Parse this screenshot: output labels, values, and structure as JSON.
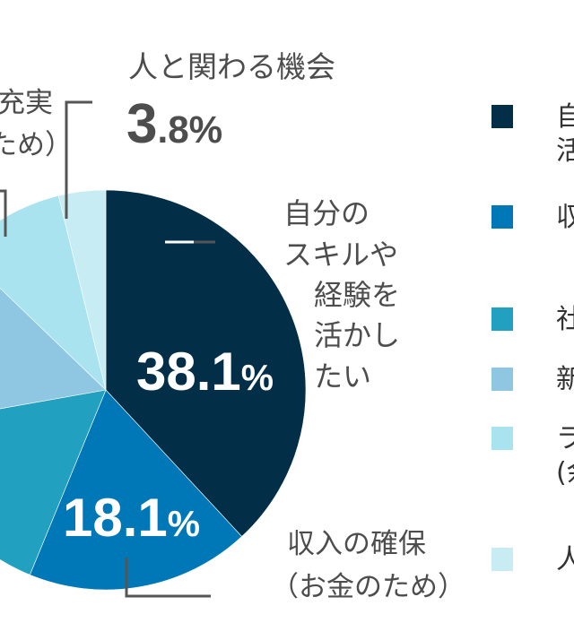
{
  "chart_data": {
    "type": "pie",
    "slices": [
      {
        "label": "自分のスキルや経験を活かしたい",
        "value": 38.1,
        "value_label": "38.1%",
        "color": "#022e48"
      },
      {
        "label": "収入の確保（お金のため）",
        "value": 18.1,
        "value_label": "18.1%",
        "color": "#0077b6"
      },
      {
        "label": "",
        "value": 16.0,
        "color": "#22a0c0"
      },
      {
        "label": "",
        "value": 15.0,
        "color": "#8fc7e3"
      },
      {
        "label": "…充実 …ため）",
        "value": 9.0,
        "color": "#a9e3f0"
      },
      {
        "label": "人と関わる機会",
        "value": 3.8,
        "value_label": "3.8%",
        "color": "#c8ecf4"
      }
    ],
    "start": "12 o'clock",
    "direction": "clockwise"
  },
  "labels": {
    "skill_lines": [
      "自分の",
      "スキルや",
      "経験を",
      "活かし",
      "たい"
    ],
    "skill_pct_main": "38.1",
    "skill_pct_unit": "%",
    "income_line1": "収入の確保",
    "income_line2": "（お金のため）",
    "income_pct_main": "18.1",
    "income_pct_unit": "%",
    "people_title": "人と関わる機会",
    "people_pct_main": "3",
    "people_pct_rest": ".8%",
    "left_line1": "充実",
    "left_line2": "ため）"
  },
  "legend": [
    {
      "lines": [
        "自",
        "活"
      ],
      "color": "#022e48"
    },
    {
      "lines": [
        "収"
      ],
      "color": "#0077b6"
    },
    {
      "lines": [
        "社"
      ],
      "color": "#22a0c0"
    },
    {
      "lines": [
        "新"
      ],
      "color": "#8fc7e3"
    },
    {
      "lines": [
        "ラ",
        "(余"
      ],
      "color": "#a9e3f0"
    },
    {
      "lines": [
        "人"
      ],
      "color": "#c8ecf4"
    }
  ]
}
